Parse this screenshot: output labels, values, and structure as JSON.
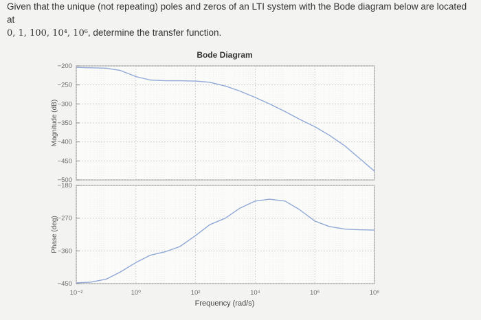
{
  "question": {
    "line1": "Given that the unique (not repeating) poles and zeros of an LTI system with the Bode diagram below are located at",
    "line2_math": "0, 1, 100, 10⁴, 10⁶",
    "line2_text": ", determine the transfer function."
  },
  "chart_data": {
    "type": "line",
    "title": "Bode Diagram",
    "xlabel": "Frequency  (rad/s)",
    "x_scale": "log",
    "xlim": [
      0.01,
      100000000
    ],
    "x_ticks": [
      {
        "value": 0.01,
        "label": "10⁻²"
      },
      {
        "value": 1,
        "label": "10⁰"
      },
      {
        "value": 100,
        "label": "10²"
      },
      {
        "value": 10000,
        "label": "10⁴"
      },
      {
        "value": 1000000,
        "label": "10⁶"
      },
      {
        "value": 100000000,
        "label": "10⁸"
      }
    ],
    "grid": true,
    "panels": [
      {
        "name": "magnitude",
        "ylabel": "Magnitude (dB)",
        "ylim": [
          -500,
          -200
        ],
        "y_ticks": [
          -200,
          -250,
          -300,
          -350,
          -400,
          -450,
          -500
        ],
        "series": [
          {
            "color": "#8fa8d6",
            "x": [
              0.01,
              0.1,
              0.3,
              1,
              3,
              10,
              30,
              100,
              300,
              1000,
              3000,
              10000,
              30000,
              100000,
              300000,
              1000000,
              3000000,
              10000000,
              30000000,
              100000000
            ],
            "y": [
              -204,
              -206,
              -212,
              -228,
              -237,
              -239,
              -239,
              -240,
              -243,
              -253,
              -266,
              -283,
              -300,
              -320,
              -340,
              -360,
              -382,
              -410,
              -442,
              -477
            ]
          }
        ]
      },
      {
        "name": "phase",
        "ylabel": "Phase (deg)",
        "ylim": [
          -450,
          -180
        ],
        "y_ticks": [
          -180,
          -270,
          -360,
          -450
        ],
        "series": [
          {
            "color": "#8fa8d6",
            "x": [
              0.01,
              0.03,
              0.1,
              0.3,
              1,
              3,
              10,
              30,
              100,
              300,
              1000,
              3000,
              10000,
              30000,
              100000,
              300000,
              1000000,
              3000000,
              10000000,
              30000000,
              100000000
            ],
            "y": [
              -448,
              -446,
              -438,
              -418,
              -392,
              -372,
              -362,
              -348,
              -318,
              -288,
              -270,
              -243,
              -223,
              -218,
              -223,
              -246,
              -278,
              -293,
              -300,
              -302,
              -303
            ]
          }
        ]
      }
    ]
  }
}
